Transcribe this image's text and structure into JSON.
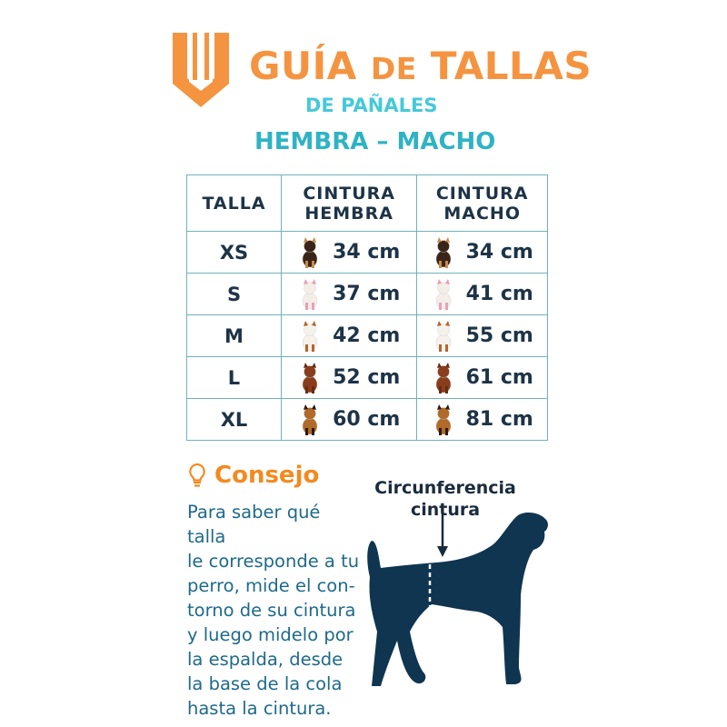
{
  "header": {
    "title_part1": "GUÍA ",
    "title_part2": "DE",
    "title_part3": " TALLAS",
    "subtitle": "DE PAÑALES",
    "subtitle2": "HEMBRA – MACHO",
    "logo_icon": "v-shield-logo"
  },
  "colors": {
    "orange": "#f59440",
    "teal": "#2eb3c4",
    "navy": "#1d3346",
    "dog_silhouette": "#0f3550"
  },
  "table": {
    "headers": [
      "TALLA",
      "CINTURA HEMBRA",
      "CINTURA MACHO"
    ],
    "rows": [
      {
        "size": "XS",
        "female": "34 cm",
        "male": "34 cm",
        "dog_icon": "chihuahua"
      },
      {
        "size": "S",
        "female": "37 cm",
        "male": "41 cm",
        "dog_icon": "maltese"
      },
      {
        "size": "M",
        "female": "42 cm",
        "male": "55 cm",
        "dog_icon": "beagle"
      },
      {
        "size": "L",
        "female": "52 cm",
        "male": "61 cm",
        "dog_icon": "cocker-spaniel"
      },
      {
        "size": "XL",
        "female": "60 cm",
        "male": "81 cm",
        "dog_icon": "german-shepherd"
      }
    ]
  },
  "tip": {
    "icon": "lightbulb",
    "title": "Consejo",
    "lines": [
      "Para saber qué talla",
      "le corresponde a tu",
      "perro, mide el con-",
      "torno de su cintura",
      "y luego midelo por",
      "la espalda, desde",
      "la base de la cola",
      "hasta la cintura."
    ]
  },
  "diagram": {
    "label_line1": "Circunferencia",
    "label_line2": "cintura"
  }
}
